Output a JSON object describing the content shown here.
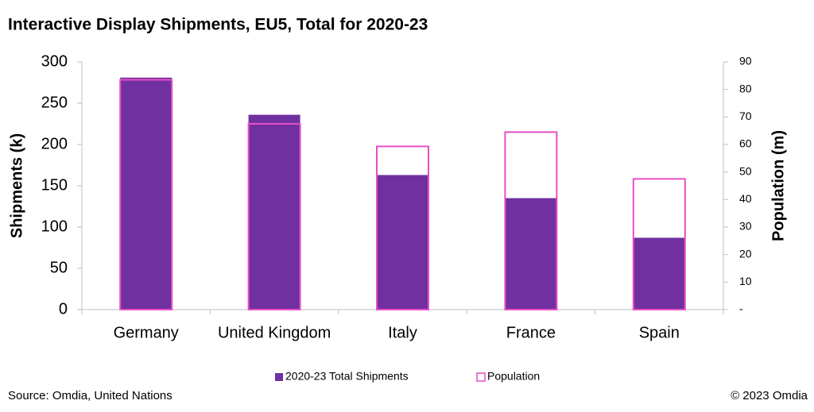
{
  "chart_data": {
    "type": "bar",
    "title": "Interactive Display Shipments, EU5, Total for 2020-23",
    "y_label": "Shipments (k)",
    "y2_label": "Population (m)",
    "categories": [
      "Germany",
      "United Kingdom",
      "Italy",
      "France",
      "Spain"
    ],
    "series": [
      {
        "name": "2020-23 Total Shipments",
        "color": "#7030a0",
        "values": [
          281,
          236,
          163,
          135,
          87
        ]
      },
      {
        "name": "Population",
        "color": "#e84fc4",
        "axis": "y2",
        "values": [
          83.5,
          67.5,
          59.3,
          64.5,
          47.5
        ]
      }
    ],
    "ylim": [
      0,
      300
    ],
    "yticks": [
      0,
      50,
      100,
      150,
      200,
      250,
      300
    ],
    "y2lim": [
      0,
      90
    ],
    "y2ticks": [
      {
        "value": 0,
        "label": "-"
      },
      10,
      20,
      30,
      40,
      50,
      60,
      70,
      80,
      90
    ],
    "grid": false,
    "legend": "bottom",
    "source": "Source: Omdia, United Nations",
    "copyright": "© 2023 Omdia"
  }
}
